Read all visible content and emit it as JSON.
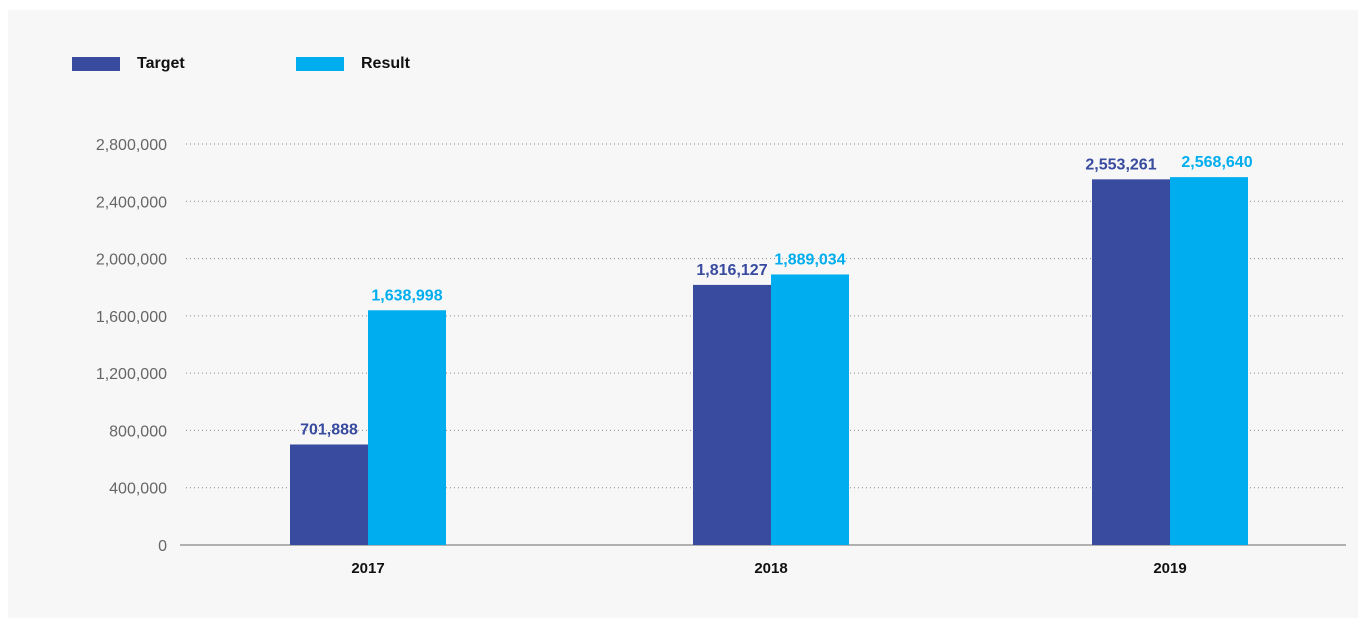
{
  "chart_data": {
    "type": "bar",
    "categories": [
      "2017",
      "2018",
      "2019"
    ],
    "series": [
      {
        "name": "Target",
        "color": "#384b9f",
        "values": [
          701888,
          1816127,
          2553261
        ],
        "labels": [
          "701,888",
          "1,816,127",
          "2,553,261"
        ]
      },
      {
        "name": "Result",
        "color": "#00aeef",
        "values": [
          1638998,
          1889034,
          2568640
        ],
        "labels": [
          "1,638,998",
          "1,889,034",
          "2,568,640"
        ]
      }
    ],
    "ylim": [
      0,
      2800000
    ],
    "yticks": [
      0,
      400000,
      800000,
      1200000,
      1600000,
      2000000,
      2400000,
      2800000
    ],
    "ytick_labels": [
      "0",
      "400,000",
      "800,000",
      "1,200,000",
      "1,600,000",
      "2,000,000",
      "2,400,000",
      "2,800,000"
    ],
    "grid": "dotted-horizontal",
    "legend_position": "top-left"
  }
}
